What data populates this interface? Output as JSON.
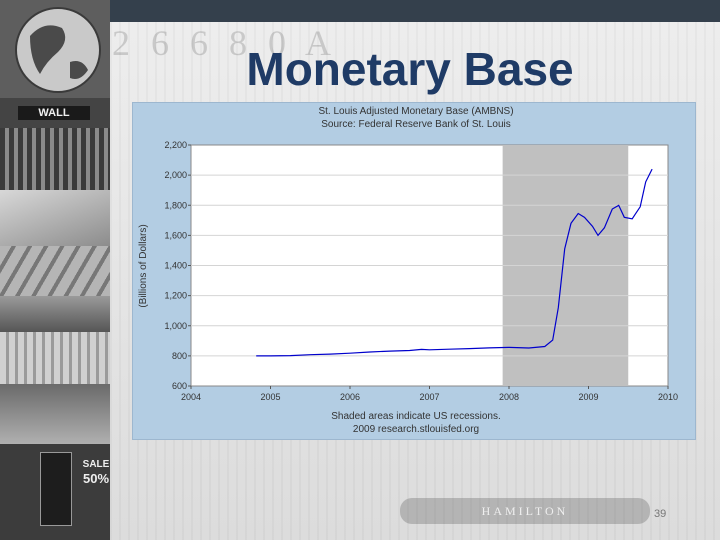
{
  "slide": {
    "title": "Monetary Base",
    "page_number": "39",
    "bill_digits": "2 6 6 8 0 A",
    "bill_bottom_text": "HAMILTON"
  },
  "collage": {
    "wall_street_sign": "WALL",
    "sale_text": "SALE",
    "sale_percent": "50%"
  },
  "colors": {
    "title": "#1f3b66",
    "panel": "#b3cde3",
    "recession": "#c0c0c0",
    "series": "#0000cc"
  },
  "chart_data": {
    "type": "line",
    "title": "St. Louis Adjusted Monetary Base (AMBNS)",
    "subtitle": "Source: Federal Reserve Bank of St. Louis",
    "ylabel": "(Billions of Dollars)",
    "xlabel": "",
    "ylim": [
      600,
      2200
    ],
    "yticks": [
      600,
      800,
      1000,
      1200,
      1400,
      1600,
      1800,
      2000,
      2200
    ],
    "ytick_labels": [
      "600",
      "800",
      "1,000",
      "1,200",
      "1,400",
      "1,600",
      "1,800",
      "2,000",
      "2,200"
    ],
    "xlim": [
      2004,
      2010
    ],
    "xticks": [
      2004,
      2005,
      2006,
      2007,
      2008,
      2009,
      2010
    ],
    "xtick_labels": [
      "2004",
      "2005",
      "2006",
      "2007",
      "2008",
      "2009",
      "2010"
    ],
    "recessions": [
      [
        2007.92,
        2009.5
      ]
    ],
    "footnote_1": "Shaded areas indicate US recessions.",
    "footnote_2": "2009 research.stlouisfed.org",
    "series": [
      {
        "x": [
          2004.82,
          2005.0,
          2005.25,
          2005.5,
          2005.75,
          2006.0,
          2006.25,
          2006.5,
          2006.75,
          2006.9,
          2007.0,
          2007.25,
          2007.5,
          2007.75,
          2008.0,
          2008.25,
          2008.45,
          2008.55,
          2008.62,
          2008.7,
          2008.78,
          2008.87,
          2008.95,
          2009.05,
          2009.12,
          2009.2,
          2009.3,
          2009.38,
          2009.45,
          2009.55,
          2009.65,
          2009.72,
          2009.8
        ],
        "y": [
          800,
          800,
          802,
          808,
          812,
          818,
          826,
          832,
          836,
          843,
          840,
          844,
          848,
          853,
          856,
          852,
          862,
          905,
          1120,
          1510,
          1680,
          1745,
          1720,
          1660,
          1600,
          1650,
          1775,
          1800,
          1720,
          1710,
          1790,
          1955,
          2040
        ]
      }
    ]
  }
}
